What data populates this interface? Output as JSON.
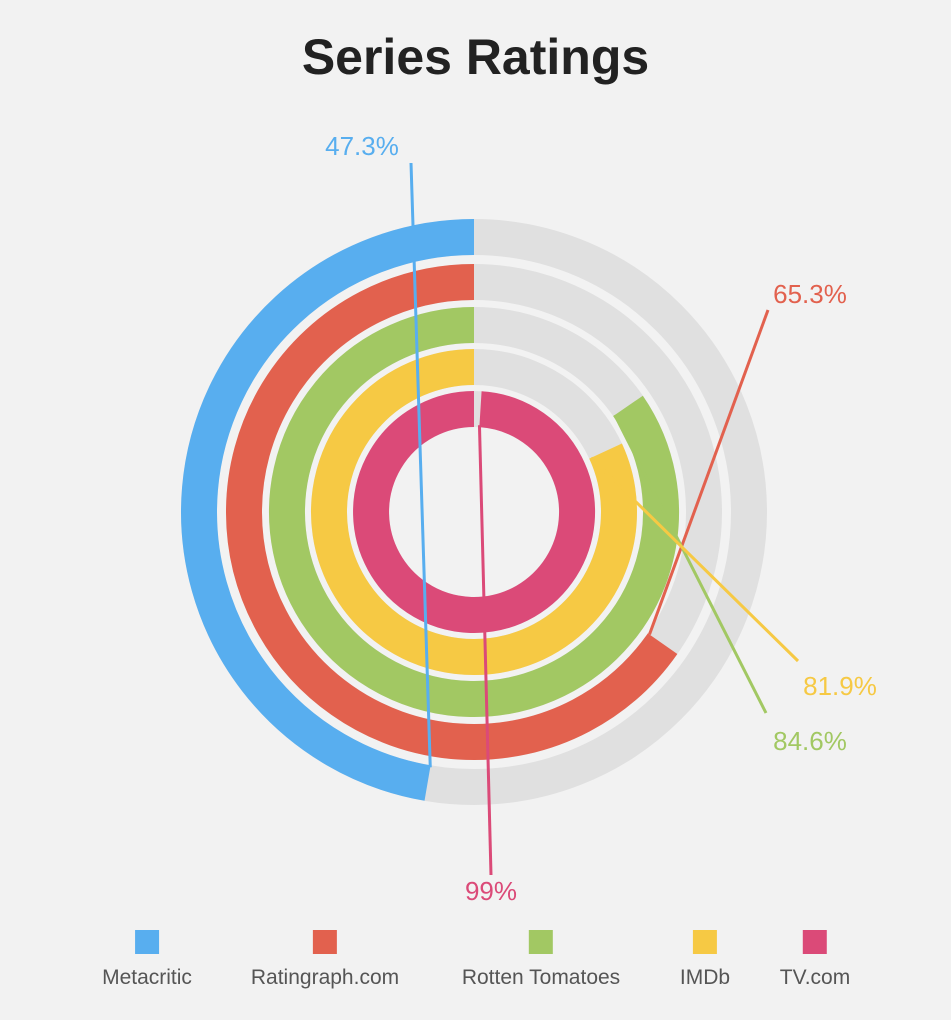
{
  "chart_data": {
    "type": "radial-bar",
    "title": "Series Ratings",
    "max": 100,
    "track_color": "#e0e0e0",
    "series": [
      {
        "name": "Metacritic",
        "value": 47.3,
        "label": "47.3%",
        "color": "#58aeef"
      },
      {
        "name": "Ratingraph.com",
        "value": 65.3,
        "label": "65.3%",
        "color": "#e2614e"
      },
      {
        "name": "Rotten Tomatoes",
        "value": 84.6,
        "label": "84.6%",
        "color": "#a2c863"
      },
      {
        "name": "IMDb",
        "value": 81.9,
        "label": "81.9%",
        "color": "#f6c944"
      },
      {
        "name": "TV.com",
        "value": 99,
        "label": "99%",
        "color": "#db4a78"
      }
    ],
    "legend_position": "bottom"
  }
}
